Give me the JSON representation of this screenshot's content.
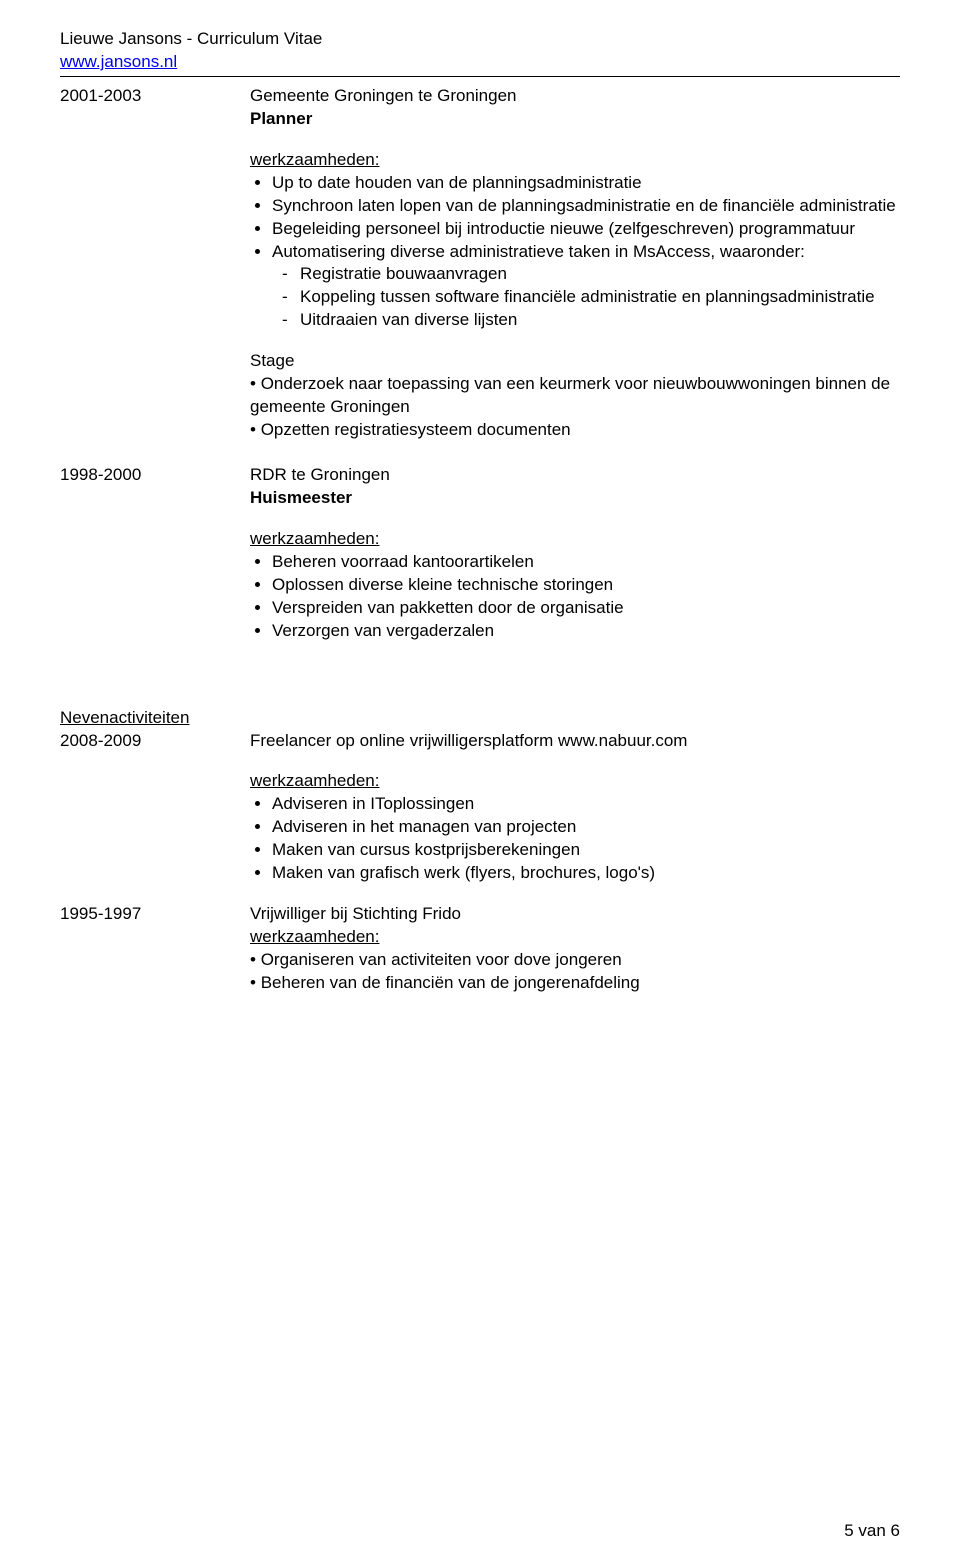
{
  "header": {
    "name": "Lieuwe Jansons - Curriculum Vitae",
    "link": "www.jansons.nl"
  },
  "job1": {
    "years": "2001-2003",
    "org": "Gemeente Groningen te Groningen",
    "title": "Planner",
    "werk_label": "werkzaamheden:",
    "bullets": {
      "b1": "Up to date houden van de planningsadministratie",
      "b2": "Synchroon laten lopen van de planningsadministratie en de financiële administratie",
      "b3": "Begeleiding personeel bij introductie nieuwe (zelfgeschreven) programmatuur",
      "b4": "Automatisering diverse administratieve taken in MsAccess, waaronder:",
      "b4sub": {
        "s1": "Registratie bouwaanvragen",
        "s2": "Koppeling tussen software financiële administratie en planningsadministratie",
        "s3": "Uitdraaien van diverse lijsten"
      }
    },
    "stage": {
      "label": "Stage",
      "l1": "Onderzoek naar toepassing van een keurmerk voor nieuwbouwwoningen binnen de gemeente Groningen",
      "l2": "Opzetten registratiesysteem documenten"
    }
  },
  "job2": {
    "years": "1998-2000",
    "org": "RDR te Groningen",
    "title": "Huismeester",
    "werk_label": "werkzaamheden:",
    "bullets": {
      "b1": "Beheren voorraad kantoorartikelen",
      "b2": "Oplossen diverse kleine technische storingen",
      "b3": "Verspreiden van pakketten door de organisatie",
      "b4": "Verzorgen van vergaderzalen"
    }
  },
  "neven": {
    "heading": "Nevenactiviteiten",
    "n1": {
      "years": "2008-2009",
      "line": "Freelancer op online vrijwilligersplatform www.nabuur.com",
      "werk_label": "werkzaamheden:",
      "bullets": {
        "b1": "Adviseren in IToplossingen",
        "b2": "Adviseren in het managen van projecten",
        "b3": "Maken van cursus kostprijsberekeningen",
        "b4": "Maken van grafisch werk (flyers, brochures, logo's)"
      }
    },
    "n2": {
      "years": "1995-1997",
      "line": "Vrijwilliger bij Stichting Frido",
      "werk_label": "werkzaamheden:",
      "l1": "Organiseren van activiteiten voor dove jongeren",
      "l2": "Beheren van de financiën van de jongerenafdeling"
    }
  },
  "footer": {
    "page": "5 van 6"
  }
}
